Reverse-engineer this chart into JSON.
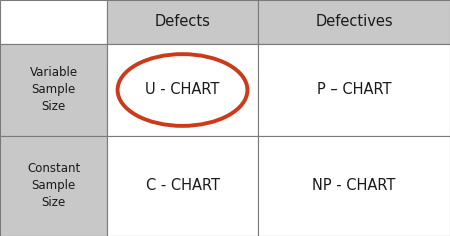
{
  "col_headers": [
    "Defects",
    "Defectives"
  ],
  "row_headers": [
    "Variable\nSample\nSize",
    "Constant\nSample\nSize"
  ],
  "cells": [
    [
      "U - CHART",
      "P – CHART"
    ],
    [
      "C - CHART",
      "NP - CHART"
    ]
  ],
  "header_bg": "#c8c8c8",
  "row_header_bg": "#c8c8c8",
  "cell_bg": "#ffffff",
  "border_color": "#7a7a7a",
  "text_color": "#1a1a1a",
  "circle_color": "#cc3a1a",
  "circle_lw": 2.8,
  "font_size_header": 10.5,
  "font_size_cell": 10.5,
  "font_size_row_header": 8.5,
  "highlighted_cell": [
    0,
    0
  ],
  "col_edges": [
    0,
    107,
    258,
    450
  ],
  "row_edges": [
    236,
    192,
    100,
    0
  ]
}
